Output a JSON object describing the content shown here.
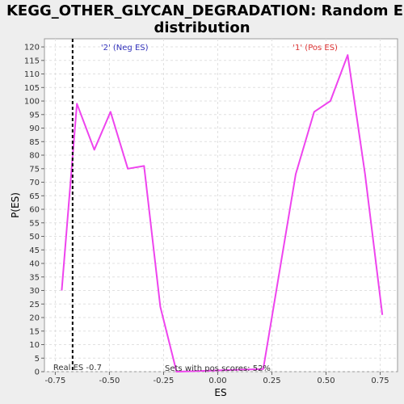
{
  "chart_data": {
    "type": "line",
    "title_line1": "KEGG_OTHER_GLYCAN_DEGRADATION: Random ES",
    "title_line2": "distribution",
    "xlabel": "ES",
    "ylabel": "P(ES)",
    "xlim": [
      -0.8,
      0.83
    ],
    "ylim": [
      0,
      123
    ],
    "x_ticks": [
      -0.75,
      -0.5,
      -0.25,
      0.0,
      0.25,
      0.5,
      0.75
    ],
    "x_tick_labels": [
      "-0.75",
      "-0.50",
      "-0.25",
      "0.00",
      "0.25",
      "0.50",
      "0.75"
    ],
    "y_ticks": [
      0,
      5,
      10,
      15,
      20,
      25,
      30,
      35,
      40,
      45,
      50,
      55,
      60,
      65,
      70,
      75,
      80,
      85,
      90,
      95,
      100,
      105,
      110,
      115,
      120
    ],
    "grid": true,
    "series": [
      {
        "color": "#ee44ee",
        "x": [
          -0.72,
          -0.65,
          -0.57,
          -0.495,
          -0.415,
          -0.34,
          -0.265,
          -0.19,
          0.21,
          0.36,
          0.445,
          0.52,
          0.6,
          0.68,
          0.76
        ],
        "y": [
          30,
          99,
          82,
          96,
          75,
          76,
          24,
          0,
          1,
          73,
          96,
          100,
          117,
          73,
          21
        ]
      }
    ],
    "real_es": {
      "value": -0.67,
      "label": "Real ES -0.7",
      "color": "#000000"
    },
    "annotations": [
      {
        "text": "'2' (Neg ES)",
        "color": "#3333bb",
        "x": -0.43,
        "y": 120
      },
      {
        "text": "'1' (Pos ES)",
        "color": "#dd3333",
        "x": 0.45,
        "y": 120
      },
      {
        "text": "Sets with pos scores: 52%",
        "color": "#333333",
        "x": 0.0,
        "y": 1.5
      }
    ]
  }
}
